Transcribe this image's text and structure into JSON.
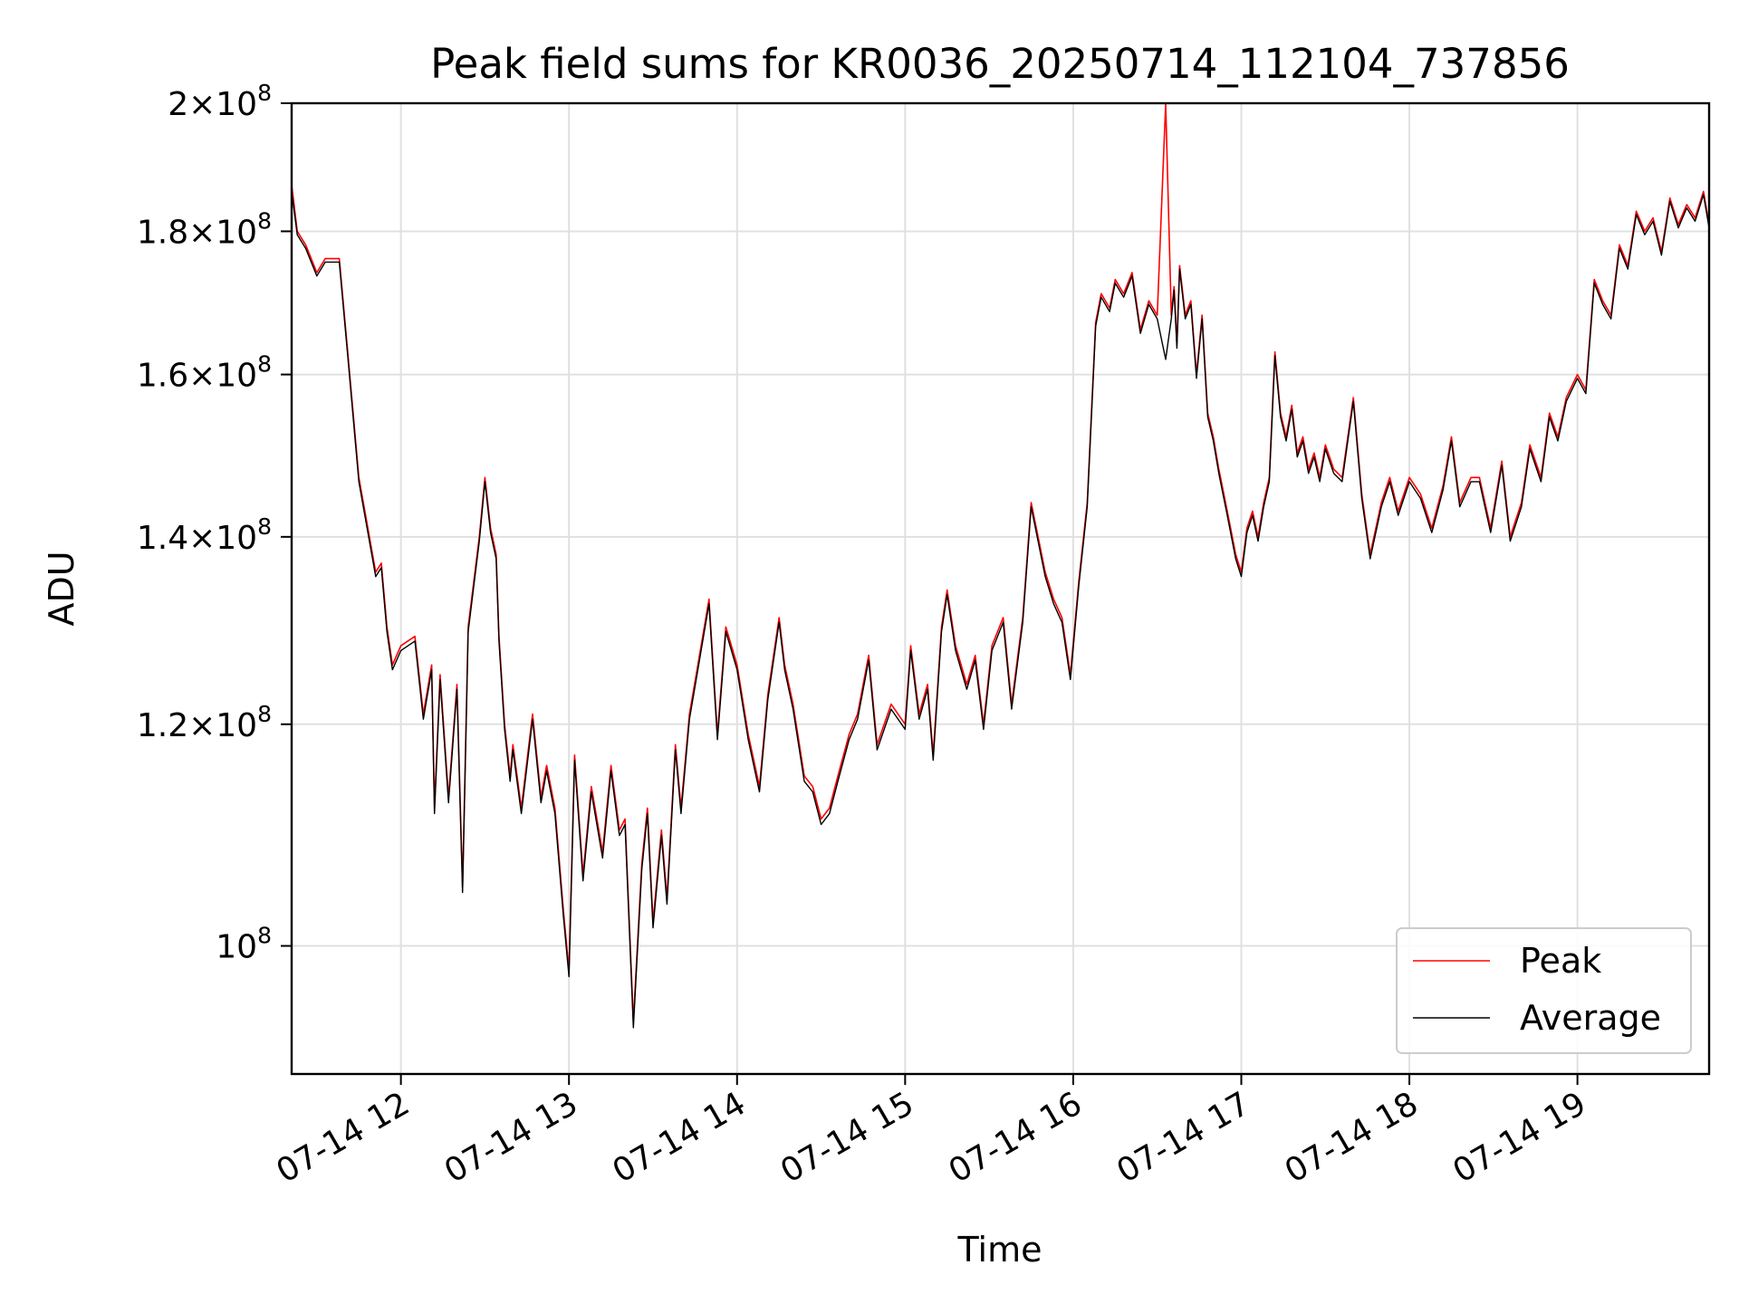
{
  "chart_data": {
    "type": "line",
    "title": "Peak field sums for KR0036_20250714_112104_737856",
    "xlabel": "Time",
    "ylabel": "ADU",
    "x_scale": "time",
    "y_scale": "log",
    "xlim": [
      "2025-07-14 11:21",
      "2025-07-14 19:47"
    ],
    "ylim": [
      90000000,
      200000000
    ],
    "x_ticks": [
      {
        "value": "2025-07-14 12:00",
        "label": "07-14 12"
      },
      {
        "value": "2025-07-14 13:00",
        "label": "07-14 13"
      },
      {
        "value": "2025-07-14 14:00",
        "label": "07-14 14"
      },
      {
        "value": "2025-07-14 15:00",
        "label": "07-14 15"
      },
      {
        "value": "2025-07-14 16:00",
        "label": "07-14 16"
      },
      {
        "value": "2025-07-14 17:00",
        "label": "07-14 17"
      },
      {
        "value": "2025-07-14 18:00",
        "label": "07-14 18"
      },
      {
        "value": "2025-07-14 19:00",
        "label": "07-14 19"
      }
    ],
    "y_ticks": [
      {
        "value": 100000000,
        "mant": "",
        "exp": "8"
      },
      {
        "value": 120000000,
        "mant": "1.2",
        "exp": "8"
      },
      {
        "value": 140000000,
        "mant": "1.4",
        "exp": "8"
      },
      {
        "value": 160000000,
        "mant": "1.6",
        "exp": "8"
      },
      {
        "value": 180000000,
        "mant": "1.8",
        "exp": "8"
      },
      {
        "value": 200000000,
        "mant": "2",
        "exp": "8"
      }
    ],
    "grid": true,
    "legend": {
      "position": "bottom-right"
    },
    "series": [
      {
        "name": "Peak",
        "color": "#ff0000",
        "x": [
          "2025-07-14 11:21",
          "2025-07-14 11:23",
          "2025-07-14 11:26",
          "2025-07-14 11:30",
          "2025-07-14 11:33",
          "2025-07-14 11:38",
          "2025-07-14 11:41",
          "2025-07-14 11:45",
          "2025-07-14 11:51",
          "2025-07-14 11:53",
          "2025-07-14 11:55",
          "2025-07-14 11:57",
          "2025-07-14 12:00",
          "2025-07-14 12:05",
          "2025-07-14 12:08",
          "2025-07-14 12:11",
          "2025-07-14 12:12",
          "2025-07-14 12:14",
          "2025-07-14 12:17",
          "2025-07-14 12:20",
          "2025-07-14 12:22",
          "2025-07-14 12:24",
          "2025-07-14 12:28",
          "2025-07-14 12:30",
          "2025-07-14 12:32",
          "2025-07-14 12:34",
          "2025-07-14 12:35",
          "2025-07-14 12:37",
          "2025-07-14 12:39",
          "2025-07-14 12:40",
          "2025-07-14 12:43",
          "2025-07-14 12:47",
          "2025-07-14 12:50",
          "2025-07-14 12:52",
          "2025-07-14 12:55",
          "2025-07-14 12:58",
          "2025-07-14 13:00",
          "2025-07-14 13:02",
          "2025-07-14 13:05",
          "2025-07-14 13:08",
          "2025-07-14 13:12",
          "2025-07-14 13:15",
          "2025-07-14 13:18",
          "2025-07-14 13:20",
          "2025-07-14 13:23",
          "2025-07-14 13:26",
          "2025-07-14 13:28",
          "2025-07-14 13:30",
          "2025-07-14 13:33",
          "2025-07-14 13:35",
          "2025-07-14 13:38",
          "2025-07-14 13:40",
          "2025-07-14 13:43",
          "2025-07-14 13:46",
          "2025-07-14 13:50",
          "2025-07-14 13:53",
          "2025-07-14 13:56",
          "2025-07-14 14:00",
          "2025-07-14 14:04",
          "2025-07-14 14:08",
          "2025-07-14 14:11",
          "2025-07-14 14:15",
          "2025-07-14 14:17",
          "2025-07-14 14:20",
          "2025-07-14 14:24",
          "2025-07-14 14:27",
          "2025-07-14 14:30",
          "2025-07-14 14:33",
          "2025-07-14 14:36",
          "2025-07-14 14:40",
          "2025-07-14 14:43",
          "2025-07-14 14:47",
          "2025-07-14 14:50",
          "2025-07-14 14:55",
          "2025-07-14 15:00",
          "2025-07-14 15:02",
          "2025-07-14 15:05",
          "2025-07-14 15:08",
          "2025-07-14 15:10",
          "2025-07-14 15:13",
          "2025-07-14 15:15",
          "2025-07-14 15:18",
          "2025-07-14 15:22",
          "2025-07-14 15:25",
          "2025-07-14 15:28",
          "2025-07-14 15:31",
          "2025-07-14 15:35",
          "2025-07-14 15:38",
          "2025-07-14 15:42",
          "2025-07-14 15:45",
          "2025-07-14 15:50",
          "2025-07-14 15:53",
          "2025-07-14 15:56",
          "2025-07-14 15:59",
          "2025-07-14 16:02",
          "2025-07-14 16:05",
          "2025-07-14 16:08",
          "2025-07-14 16:10",
          "2025-07-14 16:13",
          "2025-07-14 16:15",
          "2025-07-14 16:18",
          "2025-07-14 16:21",
          "2025-07-14 16:24",
          "2025-07-14 16:27",
          "2025-07-14 16:30",
          "2025-07-14 16:33",
          "2025-07-14 16:35",
          "2025-07-14 16:36",
          "2025-07-14 16:37",
          "2025-07-14 16:38",
          "2025-07-14 16:40",
          "2025-07-14 16:42",
          "2025-07-14 16:44",
          "2025-07-14 16:46",
          "2025-07-14 16:48",
          "2025-07-14 16:50",
          "2025-07-14 16:52",
          "2025-07-14 16:55",
          "2025-07-14 16:58",
          "2025-07-14 17:00",
          "2025-07-14 17:02",
          "2025-07-14 17:04",
          "2025-07-14 17:06",
          "2025-07-14 17:08",
          "2025-07-14 17:10",
          "2025-07-14 17:12",
          "2025-07-14 17:14",
          "2025-07-14 17:16",
          "2025-07-14 17:18",
          "2025-07-14 17:20",
          "2025-07-14 17:22",
          "2025-07-14 17:24",
          "2025-07-14 17:26",
          "2025-07-14 17:28",
          "2025-07-14 17:30",
          "2025-07-14 17:33",
          "2025-07-14 17:36",
          "2025-07-14 17:40",
          "2025-07-14 17:43",
          "2025-07-14 17:46",
          "2025-07-14 17:50",
          "2025-07-14 17:53",
          "2025-07-14 17:56",
          "2025-07-14 18:00",
          "2025-07-14 18:04",
          "2025-07-14 18:08",
          "2025-07-14 18:12",
          "2025-07-14 18:15",
          "2025-07-14 18:18",
          "2025-07-14 18:22",
          "2025-07-14 18:25",
          "2025-07-14 18:29",
          "2025-07-14 18:33",
          "2025-07-14 18:36",
          "2025-07-14 18:40",
          "2025-07-14 18:43",
          "2025-07-14 18:47",
          "2025-07-14 18:50",
          "2025-07-14 18:53",
          "2025-07-14 18:56",
          "2025-07-14 19:00",
          "2025-07-14 19:03",
          "2025-07-14 19:06",
          "2025-07-14 19:09",
          "2025-07-14 19:12",
          "2025-07-14 19:15",
          "2025-07-14 19:18",
          "2025-07-14 19:21",
          "2025-07-14 19:24",
          "2025-07-14 19:27",
          "2025-07-14 19:30",
          "2025-07-14 19:33",
          "2025-07-14 19:36",
          "2025-07-14 19:39",
          "2025-07-14 19:42",
          "2025-07-14 19:45",
          "2025-07-14 19:47"
        ],
        "values": [
          187000000,
          180000000,
          178000000,
          174000000,
          176000000,
          176000000,
          163000000,
          147000000,
          136000000,
          137000000,
          130000000,
          126000000,
          128000000,
          129000000,
          121000000,
          126000000,
          112000000,
          125000000,
          113000000,
          124000000,
          105000000,
          130000000,
          140000000,
          147000000,
          141000000,
          138000000,
          129000000,
          120000000,
          115000000,
          118000000,
          112000000,
          121000000,
          113000000,
          116000000,
          112000000,
          103000000,
          98000000,
          117000000,
          106000000,
          114000000,
          108000000,
          116000000,
          110000000,
          111000000,
          94000000,
          107000000,
          112000000,
          102000000,
          110000000,
          104000000,
          118000000,
          112000000,
          121000000,
          126000000,
          133000000,
          119000000,
          130000000,
          126000000,
          119000000,
          114000000,
          123000000,
          131000000,
          126000000,
          122000000,
          115000000,
          114000000,
          111000000,
          112000000,
          115000000,
          119000000,
          121000000,
          127000000,
          118000000,
          122000000,
          120000000,
          128000000,
          121000000,
          124000000,
          117000000,
          130000000,
          134000000,
          128000000,
          124000000,
          127000000,
          120000000,
          128000000,
          131000000,
          122000000,
          131000000,
          144000000,
          136000000,
          133000000,
          131000000,
          125000000,
          135000000,
          144000000,
          167000000,
          171000000,
          169000000,
          173000000,
          171000000,
          174000000,
          166000000,
          170000000,
          168000000,
          200000000,
          168000000,
          172000000,
          164000000,
          175000000,
          168000000,
          170000000,
          160000000,
          168000000,
          155000000,
          152000000,
          148000000,
          143000000,
          138000000,
          136000000,
          141000000,
          143000000,
          140000000,
          144000000,
          147000000,
          163000000,
          155000000,
          152000000,
          156000000,
          150000000,
          152000000,
          148000000,
          150000000,
          147000000,
          151000000,
          148000000,
          147000000,
          157000000,
          145000000,
          138000000,
          144000000,
          147000000,
          143000000,
          147000000,
          145000000,
          141000000,
          146000000,
          152000000,
          144000000,
          147000000,
          147000000,
          141000000,
          149000000,
          140000000,
          144000000,
          151000000,
          147000000,
          155000000,
          152000000,
          157000000,
          160000000,
          158000000,
          173000000,
          170000000,
          168000000,
          178000000,
          175000000,
          183000000,
          180000000,
          182000000,
          177000000,
          185000000,
          181000000,
          184000000,
          182000000,
          186000000,
          181000000
        ]
      },
      {
        "name": "Average",
        "color": "#000000",
        "x": [
          "2025-07-14 11:21",
          "2025-07-14 11:23",
          "2025-07-14 11:26",
          "2025-07-14 11:30",
          "2025-07-14 11:33",
          "2025-07-14 11:38",
          "2025-07-14 11:41",
          "2025-07-14 11:45",
          "2025-07-14 11:51",
          "2025-07-14 11:53",
          "2025-07-14 11:55",
          "2025-07-14 11:57",
          "2025-07-14 12:00",
          "2025-07-14 12:05",
          "2025-07-14 12:08",
          "2025-07-14 12:11",
          "2025-07-14 12:12",
          "2025-07-14 12:14",
          "2025-07-14 12:17",
          "2025-07-14 12:20",
          "2025-07-14 12:22",
          "2025-07-14 12:24",
          "2025-07-14 12:28",
          "2025-07-14 12:30",
          "2025-07-14 12:32",
          "2025-07-14 12:34",
          "2025-07-14 12:35",
          "2025-07-14 12:37",
          "2025-07-14 12:39",
          "2025-07-14 12:40",
          "2025-07-14 12:43",
          "2025-07-14 12:47",
          "2025-07-14 12:50",
          "2025-07-14 12:52",
          "2025-07-14 12:55",
          "2025-07-14 12:58",
          "2025-07-14 13:00",
          "2025-07-14 13:02",
          "2025-07-14 13:05",
          "2025-07-14 13:08",
          "2025-07-14 13:12",
          "2025-07-14 13:15",
          "2025-07-14 13:18",
          "2025-07-14 13:20",
          "2025-07-14 13:23",
          "2025-07-14 13:26",
          "2025-07-14 13:28",
          "2025-07-14 13:30",
          "2025-07-14 13:33",
          "2025-07-14 13:35",
          "2025-07-14 13:38",
          "2025-07-14 13:40",
          "2025-07-14 13:43",
          "2025-07-14 13:46",
          "2025-07-14 13:50",
          "2025-07-14 13:53",
          "2025-07-14 13:56",
          "2025-07-14 14:00",
          "2025-07-14 14:04",
          "2025-07-14 14:08",
          "2025-07-14 14:11",
          "2025-07-14 14:15",
          "2025-07-14 14:17",
          "2025-07-14 14:20",
          "2025-07-14 14:24",
          "2025-07-14 14:27",
          "2025-07-14 14:30",
          "2025-07-14 14:33",
          "2025-07-14 14:36",
          "2025-07-14 14:40",
          "2025-07-14 14:43",
          "2025-07-14 14:47",
          "2025-07-14 14:50",
          "2025-07-14 14:55",
          "2025-07-14 15:00",
          "2025-07-14 15:02",
          "2025-07-14 15:05",
          "2025-07-14 15:08",
          "2025-07-14 15:10",
          "2025-07-14 15:13",
          "2025-07-14 15:15",
          "2025-07-14 15:18",
          "2025-07-14 15:22",
          "2025-07-14 15:25",
          "2025-07-14 15:28",
          "2025-07-14 15:31",
          "2025-07-14 15:35",
          "2025-07-14 15:38",
          "2025-07-14 15:42",
          "2025-07-14 15:45",
          "2025-07-14 15:50",
          "2025-07-14 15:53",
          "2025-07-14 15:56",
          "2025-07-14 15:59",
          "2025-07-14 16:02",
          "2025-07-14 16:05",
          "2025-07-14 16:08",
          "2025-07-14 16:10",
          "2025-07-14 16:13",
          "2025-07-14 16:15",
          "2025-07-14 16:18",
          "2025-07-14 16:21",
          "2025-07-14 16:24",
          "2025-07-14 16:27",
          "2025-07-14 16:30",
          "2025-07-14 16:33",
          "2025-07-14 16:35",
          "2025-07-14 16:36",
          "2025-07-14 16:37",
          "2025-07-14 16:38",
          "2025-07-14 16:40",
          "2025-07-14 16:42",
          "2025-07-14 16:44",
          "2025-07-14 16:46",
          "2025-07-14 16:48",
          "2025-07-14 16:50",
          "2025-07-14 16:52",
          "2025-07-14 16:55",
          "2025-07-14 16:58",
          "2025-07-14 17:00",
          "2025-07-14 17:02",
          "2025-07-14 17:04",
          "2025-07-14 17:06",
          "2025-07-14 17:08",
          "2025-07-14 17:10",
          "2025-07-14 17:12",
          "2025-07-14 17:14",
          "2025-07-14 17:16",
          "2025-07-14 17:18",
          "2025-07-14 17:20",
          "2025-07-14 17:22",
          "2025-07-14 17:24",
          "2025-07-14 17:26",
          "2025-07-14 17:28",
          "2025-07-14 17:30",
          "2025-07-14 17:33",
          "2025-07-14 17:36",
          "2025-07-14 17:40",
          "2025-07-14 17:43",
          "2025-07-14 17:46",
          "2025-07-14 17:50",
          "2025-07-14 17:53",
          "2025-07-14 17:56",
          "2025-07-14 18:00",
          "2025-07-14 18:04",
          "2025-07-14 18:08",
          "2025-07-14 18:12",
          "2025-07-14 18:15",
          "2025-07-14 18:18",
          "2025-07-14 18:22",
          "2025-07-14 18:25",
          "2025-07-14 18:29",
          "2025-07-14 18:33",
          "2025-07-14 18:36",
          "2025-07-14 18:40",
          "2025-07-14 18:43",
          "2025-07-14 18:47",
          "2025-07-14 18:50",
          "2025-07-14 18:53",
          "2025-07-14 18:56",
          "2025-07-14 19:00",
          "2025-07-14 19:03",
          "2025-07-14 19:06",
          "2025-07-14 19:09",
          "2025-07-14 19:12",
          "2025-07-14 19:15",
          "2025-07-14 19:18",
          "2025-07-14 19:21",
          "2025-07-14 19:24",
          "2025-07-14 19:27",
          "2025-07-14 19:30",
          "2025-07-14 19:33",
          "2025-07-14 19:36",
          "2025-07-14 19:39",
          "2025-07-14 19:42",
          "2025-07-14 19:45",
          "2025-07-14 19:47"
        ],
        "values": [
          186000000,
          179500000,
          177500000,
          173500000,
          175500000,
          175500000,
          162500000,
          146500000,
          135500000,
          136500000,
          129500000,
          125500000,
          127500000,
          128500000,
          120500000,
          125500000,
          111500000,
          124500000,
          112500000,
          123500000,
          104500000,
          129500000,
          139500000,
          146500000,
          140500000,
          137500000,
          128500000,
          119500000,
          114500000,
          117500000,
          111500000,
          120500000,
          112500000,
          115500000,
          111500000,
          102500000,
          97500000,
          116500000,
          105500000,
          113500000,
          107500000,
          115500000,
          109500000,
          110500000,
          93500000,
          106500000,
          111500000,
          101500000,
          109500000,
          103500000,
          117500000,
          111500000,
          120500000,
          125500000,
          132500000,
          118500000,
          129500000,
          125500000,
          118500000,
          113500000,
          122500000,
          130500000,
          125500000,
          121500000,
          114500000,
          113500000,
          110500000,
          111500000,
          114500000,
          118500000,
          120500000,
          126500000,
          117500000,
          121500000,
          119500000,
          127500000,
          120500000,
          123500000,
          116500000,
          129500000,
          133500000,
          127500000,
          123500000,
          126500000,
          119500000,
          127500000,
          130500000,
          121500000,
          130500000,
          143500000,
          135500000,
          132500000,
          130500000,
          124500000,
          134500000,
          143500000,
          166500000,
          170500000,
          168500000,
          172500000,
          170500000,
          173500000,
          165500000,
          169500000,
          167500000,
          162000000,
          167500000,
          171500000,
          163500000,
          174500000,
          167500000,
          169500000,
          159500000,
          167500000,
          154500000,
          151500000,
          147500000,
          142500000,
          137500000,
          135500000,
          140500000,
          142500000,
          139500000,
          143500000,
          146500000,
          162500000,
          154500000,
          151500000,
          155500000,
          149500000,
          151500000,
          147500000,
          149500000,
          146500000,
          150500000,
          147500000,
          146500000,
          156500000,
          144500000,
          137500000,
          143500000,
          146500000,
          142500000,
          146500000,
          144500000,
          140500000,
          145500000,
          151500000,
          143500000,
          146500000,
          146500000,
          140500000,
          148500000,
          139500000,
          143500000,
          150500000,
          146500000,
          154500000,
          151500000,
          156500000,
          159500000,
          157500000,
          172500000,
          169500000,
          167500000,
          177500000,
          174500000,
          182500000,
          179500000,
          181500000,
          176500000,
          184500000,
          180500000,
          183500000,
          181500000,
          185500000,
          180500000
        ]
      }
    ]
  }
}
